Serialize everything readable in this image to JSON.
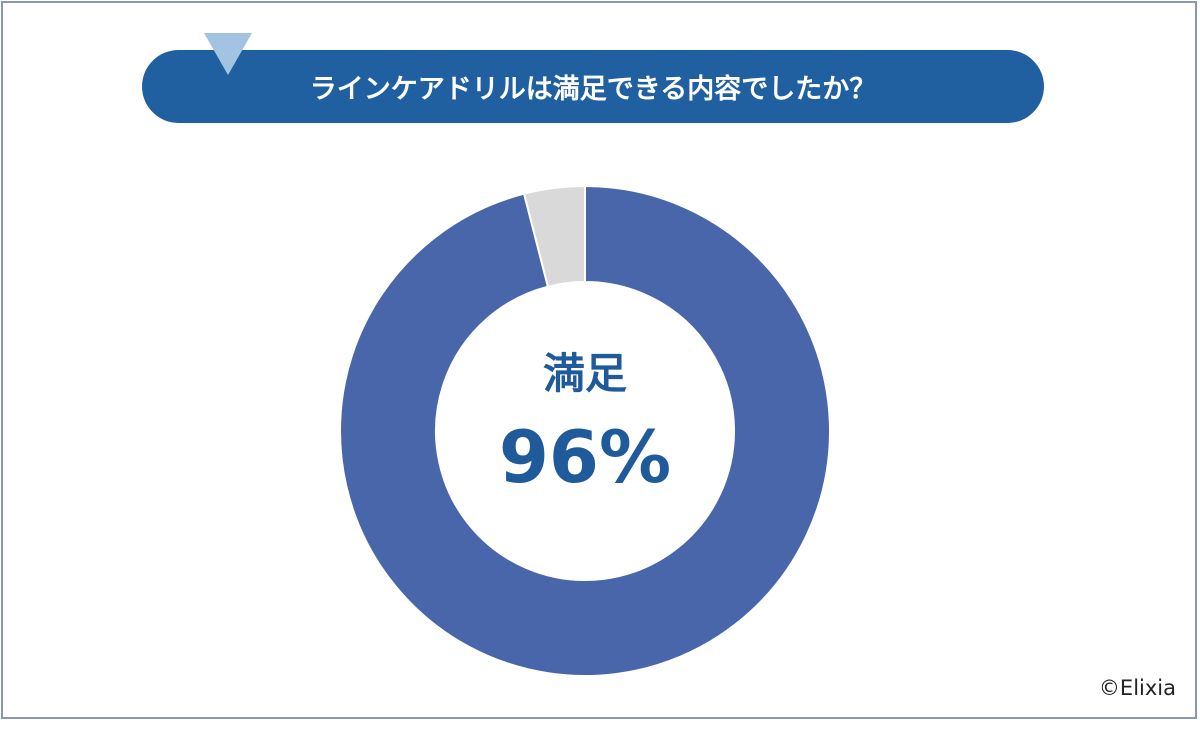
{
  "title": "ラインケアドリルは満足できる内容でしたか？",
  "center_label": "満足",
  "center_value": "96%",
  "copyright": "©Elixia",
  "colors": {
    "banner": "#2160a0",
    "satisfied": "#4a66ab",
    "other": "#d9d9d9",
    "text": "#1f5a9b"
  },
  "chart_data": {
    "type": "pie",
    "style": "donut",
    "title": "ラインケアドリルは満足できる内容でしたか？",
    "slices": [
      {
        "name": "満足",
        "value": 96,
        "color": "#4a66ab"
      },
      {
        "value": 4,
        "color": "#d9d9d9"
      }
    ]
  }
}
